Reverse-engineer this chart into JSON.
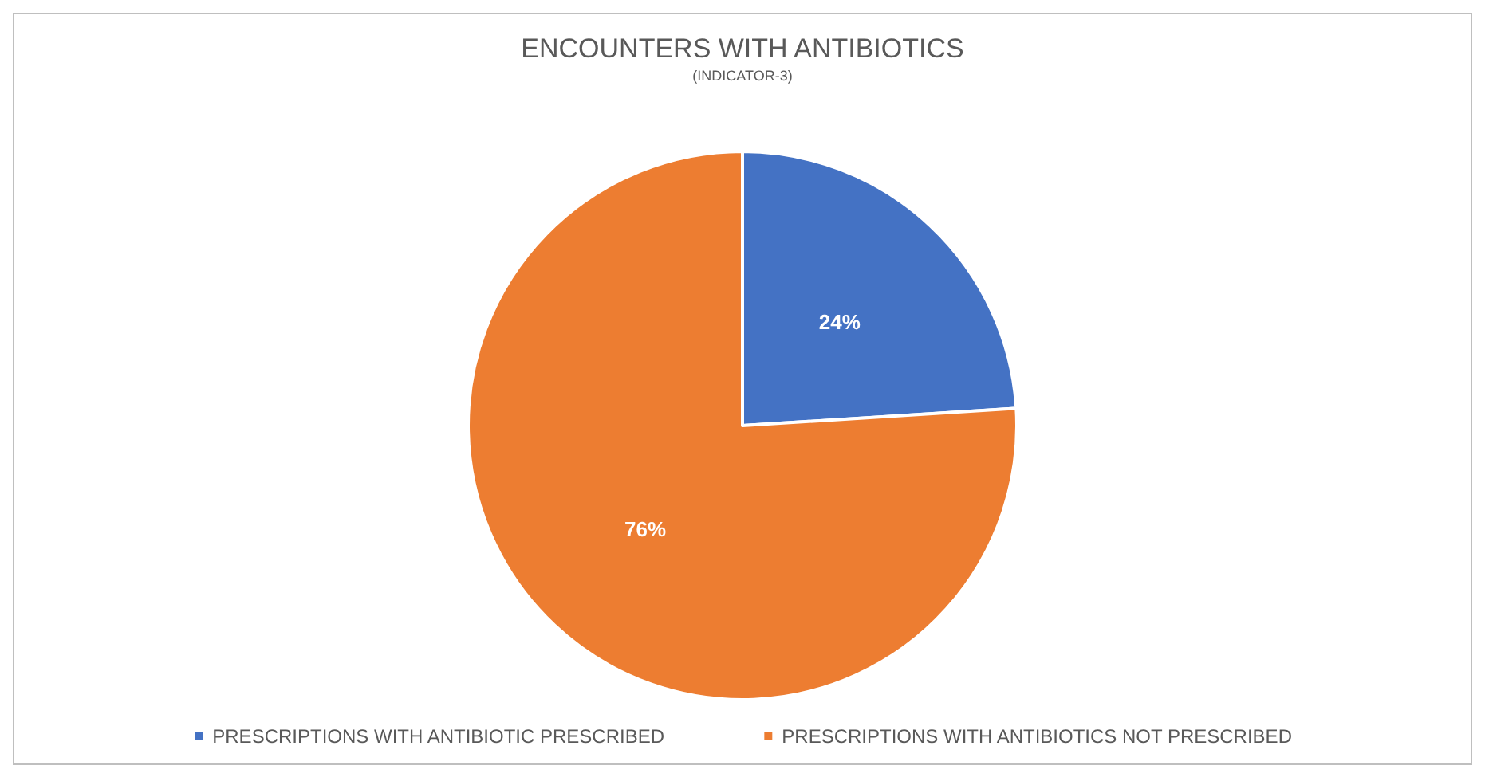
{
  "chart_data": {
    "type": "pie",
    "title": "ENCOUNTERS WITH ANTIBIOTICS",
    "subtitle": "(INDICATOR-3)",
    "categories": [
      "PRESCRIPTIONS WITH ANTIBIOTIC PRESCRIBED",
      "PRESCRIPTIONS WITH ANTIBIOTICS NOT PRESCRIBED"
    ],
    "values": [
      24,
      76
    ],
    "colors": [
      "#4472c4",
      "#ed7d31"
    ],
    "value_labels": [
      "24%",
      "76%"
    ],
    "legend": "bottom"
  }
}
